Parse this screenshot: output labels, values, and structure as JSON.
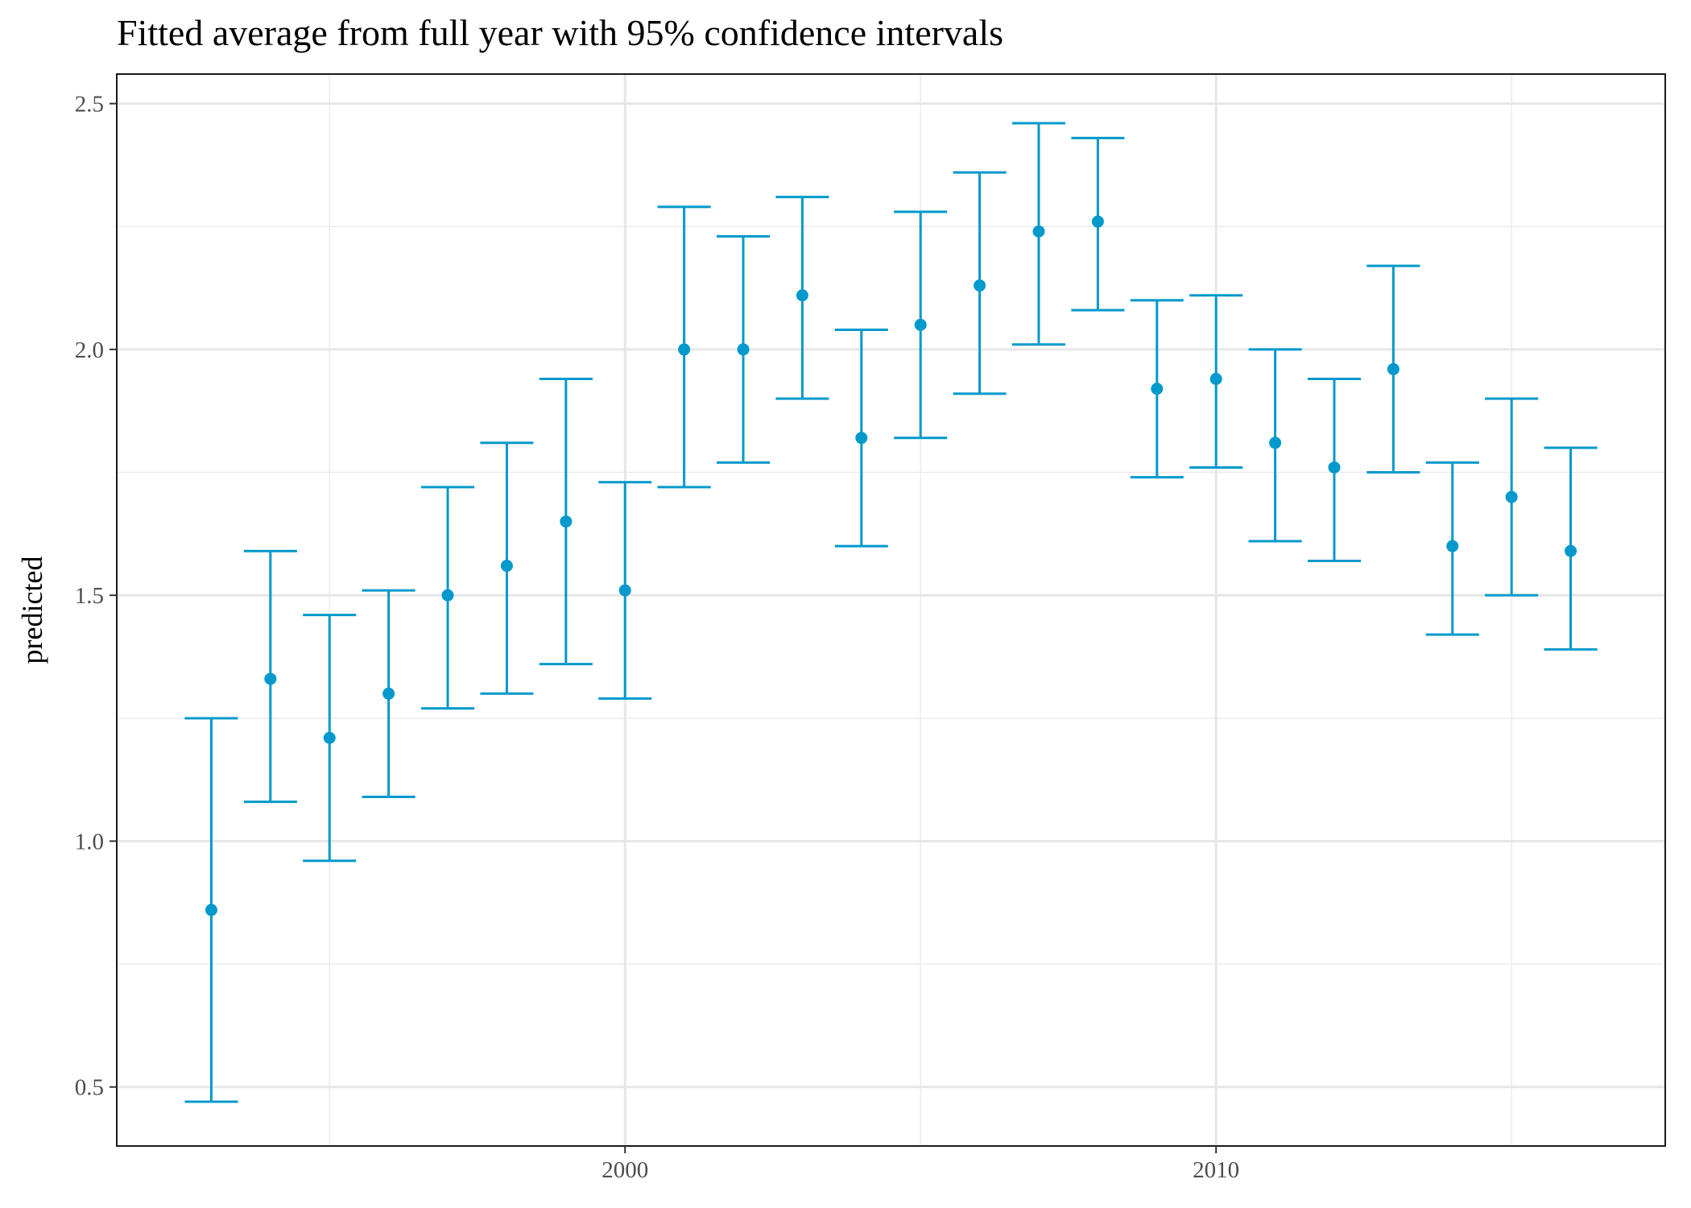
{
  "chart_data": {
    "type": "scatter",
    "title": "Fitted average from full year with 95% confidence intervals",
    "xlabel": "",
    "ylabel": "predicted",
    "xlim": [
      1991.4,
      2017.6
    ],
    "ylim": [
      0.38,
      2.56
    ],
    "x_ticks": [
      2000,
      2010
    ],
    "x_tick_labels": [
      "2000",
      "2010"
    ],
    "y_ticks": [
      0.5,
      1.0,
      1.5,
      2.0,
      2.5
    ],
    "y_tick_labels": [
      "0.5",
      "1.0",
      "1.5",
      "2.0",
      "2.5"
    ],
    "grid": true,
    "legend": "none",
    "color": "#0099cc",
    "points": [
      {
        "x": 1993,
        "y": 0.86,
        "lower": 0.47,
        "upper": 1.25
      },
      {
        "x": 1994,
        "y": 1.33,
        "lower": 1.08,
        "upper": 1.59
      },
      {
        "x": 1995,
        "y": 1.21,
        "lower": 0.96,
        "upper": 1.46
      },
      {
        "x": 1996,
        "y": 1.3,
        "lower": 1.09,
        "upper": 1.51
      },
      {
        "x": 1997,
        "y": 1.5,
        "lower": 1.27,
        "upper": 1.72
      },
      {
        "x": 1998,
        "y": 1.56,
        "lower": 1.3,
        "upper": 1.81
      },
      {
        "x": 1999,
        "y": 1.65,
        "lower": 1.36,
        "upper": 1.94
      },
      {
        "x": 2000,
        "y": 1.51,
        "lower": 1.29,
        "upper": 1.73
      },
      {
        "x": 2001,
        "y": 2.0,
        "lower": 1.72,
        "upper": 2.29
      },
      {
        "x": 2002,
        "y": 2.0,
        "lower": 1.77,
        "upper": 2.23
      },
      {
        "x": 2003,
        "y": 2.11,
        "lower": 1.9,
        "upper": 2.31
      },
      {
        "x": 2004,
        "y": 1.82,
        "lower": 1.6,
        "upper": 2.04
      },
      {
        "x": 2005,
        "y": 2.05,
        "lower": 1.82,
        "upper": 2.28
      },
      {
        "x": 2006,
        "y": 2.13,
        "lower": 1.91,
        "upper": 2.36
      },
      {
        "x": 2007,
        "y": 2.24,
        "lower": 2.01,
        "upper": 2.46
      },
      {
        "x": 2008,
        "y": 2.26,
        "lower": 2.08,
        "upper": 2.43
      },
      {
        "x": 2009,
        "y": 1.92,
        "lower": 1.74,
        "upper": 2.1
      },
      {
        "x": 2010,
        "y": 1.94,
        "lower": 1.76,
        "upper": 2.11
      },
      {
        "x": 2011,
        "y": 1.81,
        "lower": 1.61,
        "upper": 2.0
      },
      {
        "x": 2012,
        "y": 1.76,
        "lower": 1.57,
        "upper": 1.94
      },
      {
        "x": 2013,
        "y": 1.96,
        "lower": 1.75,
        "upper": 2.17
      },
      {
        "x": 2014,
        "y": 1.6,
        "lower": 1.42,
        "upper": 1.77
      },
      {
        "x": 2015,
        "y": 1.7,
        "lower": 1.5,
        "upper": 1.9
      },
      {
        "x": 2016,
        "y": 1.59,
        "lower": 1.39,
        "upper": 1.8
      }
    ]
  }
}
